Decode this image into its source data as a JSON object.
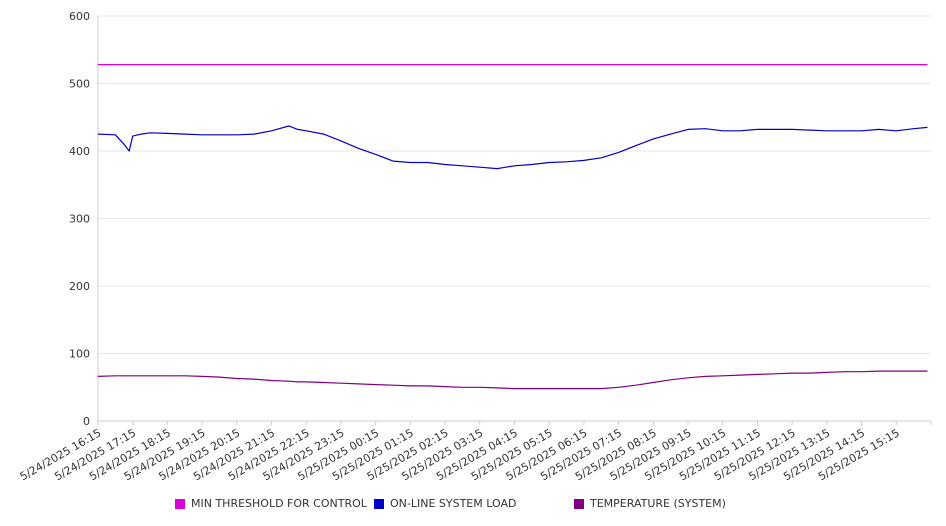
{
  "chart_data": {
    "type": "line",
    "title": "",
    "xlabel": "",
    "ylabel": "",
    "ylim": [
      0,
      600
    ],
    "yticks": [
      0,
      100,
      200,
      300,
      400,
      500,
      600
    ],
    "grid": true,
    "legend_position": "bottom",
    "x_tick_labels": [
      "5/24/2025 16:15",
      "5/24/2025 17:15",
      "5/24/2025 18:15",
      "5/24/2025 19:15",
      "5/24/2025 20:15",
      "5/24/2025 21:15",
      "5/24/2025 22:15",
      "5/24/2025 23:15",
      "5/25/2025 00:15",
      "5/25/2025 01:15",
      "5/25/2025 02:15",
      "5/25/2025 03:15",
      "5/25/2025 04:15",
      "5/25/2025 05:15",
      "5/25/2025 06:15",
      "5/25/2025 07:15",
      "5/25/2025 08:15",
      "5/25/2025 09:15",
      "5/25/2025 10:15",
      "5/25/2025 11:15",
      "5/25/2025 12:15",
      "5/25/2025 13:15",
      "5/25/2025 14:15",
      "5/25/2025 15:15"
    ],
    "x_hours": [
      0,
      0.5,
      0.75,
      0.9,
      1,
      1.25,
      1.5,
      2,
      2.5,
      3,
      3.5,
      4,
      4.5,
      5,
      5.5,
      5.75,
      6,
      6.5,
      7,
      7.5,
      8,
      8.5,
      9,
      9.5,
      10,
      10.5,
      11,
      11.5,
      12,
      12.5,
      13,
      13.5,
      14,
      14.5,
      15,
      15.5,
      16,
      16.5,
      17,
      17.5,
      18,
      18.5,
      19,
      19.5,
      20,
      20.5,
      21,
      21.5,
      22,
      22.5,
      23,
      23.5,
      23.9
    ],
    "series": [
      {
        "name": "MIN THRESHOLD FOR CONTROL",
        "color": "#dd00dd",
        "values": [
          528,
          528,
          528,
          528,
          528,
          528,
          528,
          528,
          528,
          528,
          528,
          528,
          528,
          528,
          528,
          528,
          528,
          528,
          528,
          528,
          528,
          528,
          528,
          528,
          528,
          528,
          528,
          528,
          528,
          528,
          528,
          528,
          528,
          528,
          528,
          528,
          528,
          528,
          528,
          528,
          528,
          528,
          528,
          528,
          528,
          528,
          528,
          528,
          528,
          528,
          528,
          528,
          528
        ]
      },
      {
        "name": "ON-LINE SYSTEM LOAD",
        "color": "#0000cc",
        "values": [
          425,
          424,
          410,
          400,
          422,
          425,
          427,
          426,
          425,
          424,
          424,
          424,
          425,
          430,
          437,
          432,
          430,
          425,
          415,
          404,
          395,
          385,
          383,
          383,
          380,
          378,
          376,
          374,
          378,
          380,
          383,
          384,
          386,
          390,
          398,
          408,
          418,
          425,
          432,
          433,
          430,
          430,
          432,
          432,
          432,
          431,
          430,
          430,
          430,
          432,
          430,
          433,
          435
        ]
      },
      {
        "name": "TEMPERATURE (SYSTEM)",
        "color": "#800080",
        "values": [
          66,
          67,
          67,
          67,
          67,
          67,
          67,
          67,
          67,
          66,
          65,
          63,
          62,
          60,
          59,
          58,
          58,
          57,
          56,
          55,
          54,
          53,
          52,
          52,
          51,
          50,
          50,
          49,
          48,
          48,
          48,
          48,
          48,
          48,
          50,
          53,
          57,
          61,
          64,
          66,
          67,
          68,
          69,
          70,
          71,
          71,
          72,
          73,
          73,
          74,
          74,
          74,
          74
        ]
      }
    ]
  }
}
